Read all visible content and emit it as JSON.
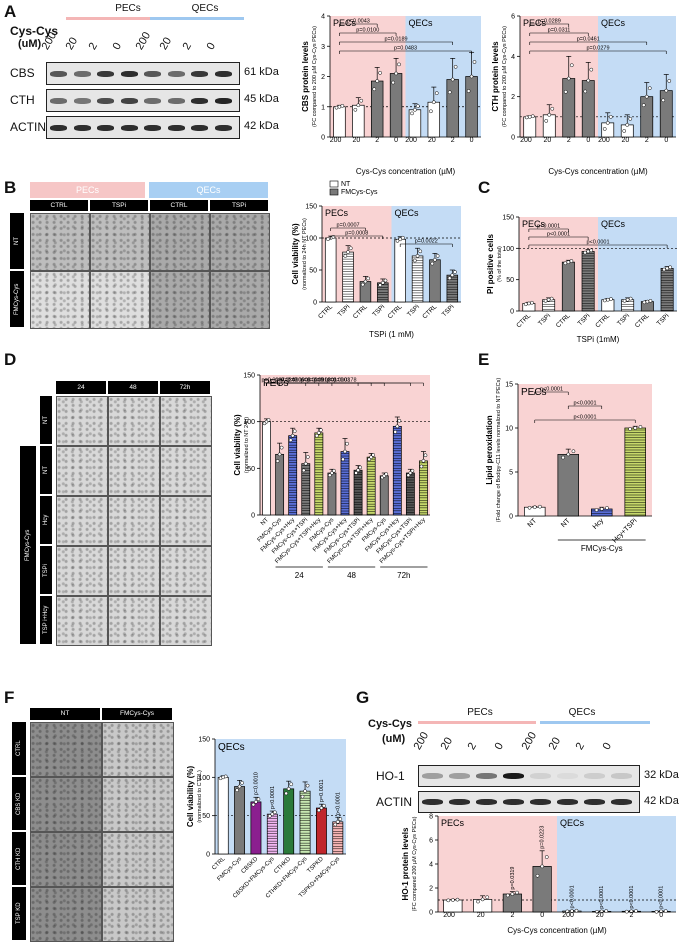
{
  "panels": {
    "A": {
      "letter": "A",
      "treatment_label": "Cys-Cys",
      "treatment_unit": "(uM)",
      "groups": [
        "PECs",
        "QECs"
      ],
      "lanes": [
        "200",
        "20",
        "2",
        "0",
        "200",
        "20",
        "2",
        "0"
      ],
      "blots": [
        {
          "name": "CBS",
          "kda": "61 kDa"
        },
        {
          "name": "CTH",
          "kda": "45 kDa"
        },
        {
          "name": "ACTIN",
          "kda": "42 kDa"
        }
      ]
    },
    "B": {
      "letter": "B",
      "groups": [
        "PECs",
        "QECs"
      ],
      "conditions": [
        "CTRL",
        "TSPi",
        "CTRL",
        "TSPi"
      ],
      "rows": [
        "NT",
        "FMCys-Cys"
      ]
    },
    "C": {
      "letter": "C"
    },
    "D": {
      "letter": "D",
      "times": [
        "24",
        "48",
        "72h"
      ],
      "side_label": "FMCys-Cys",
      "rows": [
        "NT",
        "NT",
        "Hcy",
        "TSPi",
        "TSP i+Hcy"
      ]
    },
    "E": {
      "letter": "E"
    },
    "F": {
      "letter": "F",
      "cols": [
        "NT",
        "FMCys-Cys"
      ],
      "rows": [
        "CTRL",
        "CBS KD",
        "CTH KD",
        "TSP KD"
      ]
    },
    "G": {
      "letter": "G",
      "treatment_label": "Cys-Cys",
      "treatment_unit": "(uM)",
      "groups": [
        "PECs",
        "QECs"
      ],
      "lanes": [
        "200",
        "20",
        "2",
        "0",
        "200",
        "20",
        "2",
        "0"
      ],
      "blots": [
        {
          "name": "HO-1",
          "kda": "32 kDa"
        },
        {
          "name": "ACTIN",
          "kda": "42 kDa"
        }
      ]
    }
  },
  "chart_data": [
    {
      "id": "A1",
      "type": "bar",
      "ylabel": "CBS protein levels",
      "ylabel_sub": "(FC compared to 200 µM Cys-Cys PECs)",
      "xlabel": "Cys-Cys concentration (µM)",
      "categories": [
        "200",
        "20",
        "2",
        "0",
        "200",
        "20",
        "2",
        "0"
      ],
      "values": [
        1.0,
        1.05,
        1.85,
        2.1,
        0.9,
        1.15,
        1.9,
        2.0
      ],
      "errors": [
        0.05,
        0.25,
        0.45,
        0.5,
        0.2,
        0.5,
        0.7,
        0.8
      ],
      "ylim": [
        0,
        4
      ],
      "yticks": [
        0,
        1,
        2,
        3,
        4
      ],
      "baseline": 1,
      "regions": [
        "PECs",
        "QECs"
      ],
      "pvalues": [
        {
          "from": 0,
          "to": 2,
          "label": "p=0.0043"
        },
        {
          "from": 0,
          "to": 3,
          "label": "p=0.0100"
        },
        {
          "from": 0,
          "to": 6,
          "label": "p=0.0189"
        },
        {
          "from": 0,
          "to": 7,
          "label": "p=0.0483"
        }
      ]
    },
    {
      "id": "A2",
      "type": "bar",
      "ylabel": "CTH protein levels",
      "ylabel_sub": "(FC compared to 200 µM Cys-Cys PECs)",
      "xlabel": "Cys-Cys concentration (µM)",
      "categories": [
        "200",
        "20",
        "2",
        "0",
        "200",
        "20",
        "2",
        "0"
      ],
      "values": [
        1.0,
        1.1,
        2.9,
        2.8,
        0.7,
        0.6,
        2.0,
        2.3
      ],
      "errors": [
        0.05,
        0.5,
        1.1,
        0.9,
        0.5,
        0.5,
        0.7,
        0.8
      ],
      "ylim": [
        0,
        6
      ],
      "yticks": [
        0,
        2,
        4,
        6
      ],
      "baseline": 1,
      "regions": [
        "PECs",
        "QECs"
      ],
      "pvalues": [
        {
          "from": 0,
          "to": 2,
          "label": "p=0.0289"
        },
        {
          "from": 0,
          "to": 3,
          "label": "p=0.0311"
        },
        {
          "from": 0,
          "to": 6,
          "label": "p=0.0461"
        },
        {
          "from": 0,
          "to": 7,
          "label": "p=0.0279"
        }
      ]
    },
    {
      "id": "B",
      "type": "bar",
      "ylabel": "Cell viability (%)",
      "ylabel_sub": "(normalized to 24h NT PECs)",
      "xlabel": "TSPi (1 mM)",
      "legend": [
        "NT",
        "FMCys-Cys"
      ],
      "categories": [
        "CTRL",
        "TSPi",
        "CTRL",
        "TSPi",
        "CTRL",
        "TSPi",
        "CTRL",
        "TSPi"
      ],
      "values": [
        100,
        78,
        32,
        30,
        98,
        72,
        66,
        42
      ],
      "errors": [
        3,
        10,
        8,
        6,
        4,
        12,
        10,
        8
      ],
      "ylim": [
        0,
        150
      ],
      "yticks": [
        0,
        50,
        100,
        150
      ],
      "baseline": 100,
      "regions": [
        "PECs",
        "QECs"
      ],
      "pvalues": [
        {
          "from": 0,
          "to": 2,
          "label": "p=0.0007"
        },
        {
          "from": 0,
          "to": 3,
          "label": "p=0.0008"
        },
        {
          "from": 4,
          "to": 7,
          "label": "p=0.0022"
        }
      ]
    },
    {
      "id": "C",
      "type": "bar",
      "ylabel": "PI positive cells",
      "ylabel_sub": "(% of the total)",
      "xlabel": "TSPi (1mM)",
      "legend": [
        "NT",
        "FMCys-Cys"
      ],
      "categories": [
        "CTRL",
        "TSPi",
        "CTRL",
        "TSPi",
        "CTRL",
        "TSPi",
        "CTRL",
        "TSPi"
      ],
      "values": [
        12,
        18,
        78,
        95,
        18,
        18,
        15,
        68
      ],
      "errors": [
        2,
        3,
        3,
        3,
        2,
        3,
        2,
        3
      ],
      "ylim": [
        0,
        150
      ],
      "yticks": [
        0,
        50,
        100,
        150
      ],
      "baseline": 100,
      "regions": [
        "PECs",
        "QECs"
      ],
      "pvalues": [
        {
          "from": 0,
          "to": 2,
          "label": "p<0.0001"
        },
        {
          "from": 0,
          "to": 3,
          "label": "p<0.0001"
        },
        {
          "from": 0,
          "to": 7,
          "label": "p<0.0001"
        }
      ]
    },
    {
      "id": "D",
      "type": "bar",
      "ylabel": "Cell viability (%)",
      "ylabel_sub": "(normalized to NT 24h)",
      "region_label": "PECs",
      "categories": [
        "NT",
        "FMCys-Cys",
        "FMCys-Cys+Hcy",
        "FMCys-Cys+TSPi",
        "FMCys-Cys+TSPi+Hcy",
        "FMCys-Cys",
        "FMCys-Cys+Hcy",
        "FMCys-Cys+TSPi",
        "FMCys-Cys+TSPi+Hcy",
        "FMCys-Cys",
        "FMCys-Cys+Hcy",
        "FMCys-Cys+TSPi",
        "FMCys-Cys+TSPi+Hcy"
      ],
      "groups": [
        {
          "label": "24",
          "from": 1,
          "to": 4
        },
        {
          "label": "48",
          "from": 5,
          "to": 8
        },
        {
          "label": "72h",
          "from": 9,
          "to": 12
        }
      ],
      "values": [
        100,
        65,
        85,
        55,
        88,
        45,
        68,
        48,
        62,
        42,
        95,
        45,
        58
      ],
      "errors": [
        3,
        12,
        8,
        12,
        5,
        4,
        14,
        5,
        4,
        3,
        10,
        4,
        10
      ],
      "ylim": [
        0,
        150
      ],
      "yticks": [
        0,
        50,
        100,
        150
      ],
      "baseline": 100,
      "pvalues": [
        {
          "from": 0,
          "to": 1,
          "label": "p=0.0237"
        },
        {
          "from": 0,
          "to": 3,
          "label": "p=0.0247"
        },
        {
          "from": 0,
          "to": 4,
          "label": "p=0.0006"
        },
        {
          "from": 0,
          "to": 5,
          "label": "p=0.0008"
        },
        {
          "from": 0,
          "to": 7,
          "label": "p=0.0019"
        },
        {
          "from": 0,
          "to": 8,
          "label": "p=0.0012"
        },
        {
          "from": 0,
          "to": 9,
          "label": "p=0.0001"
        },
        {
          "from": 0,
          "to": 11,
          "label": "p=0.0003"
        },
        {
          "from": 0,
          "to": 12,
          "label": "p=0.0178"
        }
      ]
    },
    {
      "id": "E",
      "type": "bar",
      "ylabel": "Lipid peroxidation",
      "ylabel_sub": "(Fold change of Bodipy-C11 levels normalized to NT PECs)",
      "region_label": "PECs",
      "categories": [
        "NT",
        "NT",
        "Hcy",
        "Hcy+TSPi"
      ],
      "bracket_label": "FMCys-Cys",
      "bracket_from": 1,
      "bracket_to": 3,
      "values": [
        1.0,
        7.0,
        0.8,
        10.0
      ],
      "errors": [
        0.1,
        0.6,
        0.2,
        0.2
      ],
      "ylim": [
        0,
        15
      ],
      "yticks": [
        0,
        5,
        10,
        15
      ],
      "pvalues": [
        {
          "from": 0,
          "to": 1,
          "label": "p<0.0001"
        },
        {
          "from": 1,
          "to": 2,
          "label": "p<0.0001"
        },
        {
          "from": 0,
          "to": 3,
          "label": "p<0.0001"
        }
      ]
    },
    {
      "id": "F",
      "type": "bar",
      "ylabel": "Cell viability (%)",
      "ylabel_sub": "(normalized to CTRL)",
      "region_label": "QECs",
      "categories": [
        "CTRL",
        "FMCys-Cys",
        "CBSKD",
        "CBSKD+FMCys-Cys",
        "CTHKD",
        "CTHKD+FMCys-Cys",
        "TSPKD",
        "TSPKD+FMCys-Cys"
      ],
      "values": [
        100,
        88,
        68,
        52,
        85,
        82,
        60,
        42
      ],
      "errors": [
        2,
        8,
        6,
        4,
        10,
        12,
        5,
        6
      ],
      "ylim": [
        0,
        150
      ],
      "yticks": [
        0,
        50,
        100,
        150
      ],
      "baseline": 50,
      "bar_labels": [
        null,
        null,
        "p=0.0010",
        "p<0.0001",
        null,
        null,
        "p=0.0011",
        "p<0.0001"
      ]
    },
    {
      "id": "G",
      "type": "bar",
      "ylabel": "HO-1 protein levels",
      "ylabel_sub": "(FC compared 200 µM Cys-Cys PECs)",
      "xlabel": "Cys-Cys concentration (µM)",
      "categories": [
        "200",
        "20",
        "2",
        "0",
        "200",
        "20",
        "2",
        "0"
      ],
      "values": [
        1.0,
        1.05,
        1.5,
        3.8,
        0.08,
        0.05,
        0.06,
        0.05
      ],
      "errors": [
        0.05,
        0.3,
        0.2,
        1.3,
        0.05,
        0.05,
        0.05,
        0.05
      ],
      "ylim": [
        0,
        8
      ],
      "yticks": [
        0,
        2,
        4,
        6,
        8
      ],
      "baseline": 1,
      "regions": [
        "PECs",
        "QECs"
      ],
      "bar_labels": [
        null,
        null,
        "p=0.0319",
        "p=0.0223",
        "p<0.0001",
        "p<0.0001",
        "p<0.0001",
        "p<0.0001"
      ]
    }
  ]
}
